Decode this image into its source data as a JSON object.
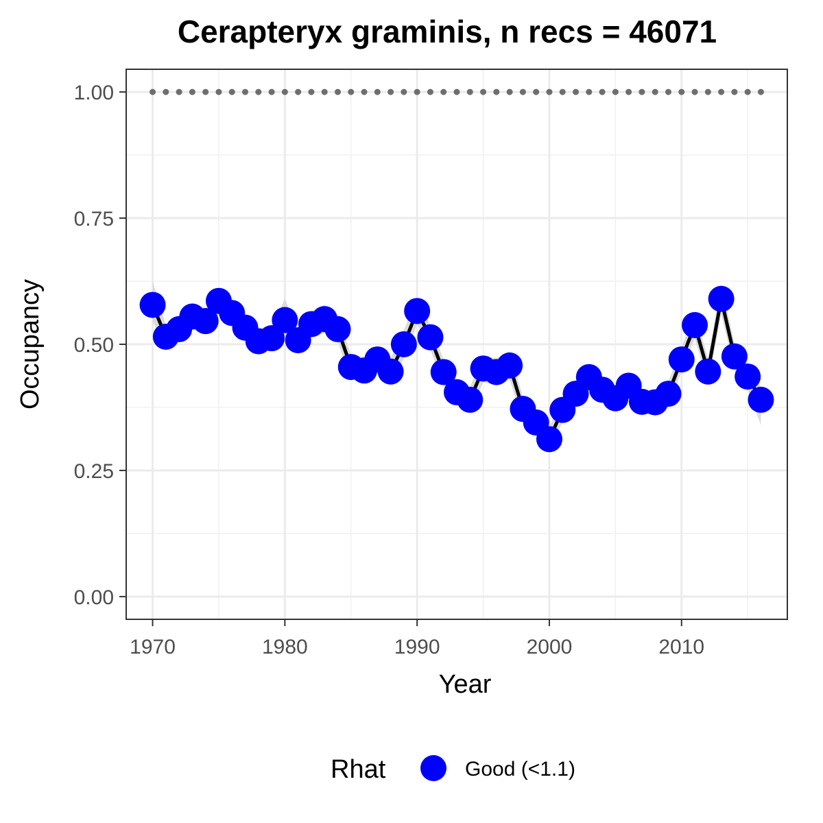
{
  "chart_data": {
    "type": "line",
    "title": "Cerapteryx graminis, n recs = 46071",
    "xlabel": "Year",
    "ylabel": "Occupancy",
    "xlim": [
      1968,
      2018
    ],
    "ylim": [
      -0.045,
      1.045
    ],
    "x_ticks": [
      1970,
      1980,
      1990,
      2000,
      2010
    ],
    "x_tick_labels": [
      "1970",
      "1980",
      "1990",
      "2000",
      "2010"
    ],
    "y_ticks": [
      0,
      0.25,
      0.5,
      0.75,
      1
    ],
    "y_tick_labels": [
      "0.00",
      "0.25",
      "0.50",
      "0.75",
      "1.00"
    ],
    "grid": true,
    "legend_position": "bottom",
    "legend": {
      "title": "Rhat",
      "entries": [
        {
          "label": "Good (<1.1)",
          "color": "#0000ff"
        }
      ]
    },
    "x": [
      1970,
      1971,
      1972,
      1973,
      1974,
      1975,
      1976,
      1977,
      1978,
      1979,
      1980,
      1981,
      1982,
      1983,
      1984,
      1985,
      1986,
      1987,
      1988,
      1989,
      1990,
      1991,
      1992,
      1993,
      1994,
      1995,
      1996,
      1997,
      1998,
      1999,
      2000,
      2001,
      2002,
      2003,
      2004,
      2005,
      2006,
      2007,
      2008,
      2009,
      2010,
      2011,
      2012,
      2013,
      2014,
      2015,
      2016
    ],
    "series": [
      {
        "values": [
          0.578,
          0.515,
          0.53,
          0.555,
          0.546,
          0.586,
          0.562,
          0.533,
          0.506,
          0.512,
          0.548,
          0.508,
          0.54,
          0.55,
          0.53,
          0.455,
          0.448,
          0.47,
          0.446,
          0.5,
          0.566,
          0.514,
          0.445,
          0.405,
          0.39,
          0.452,
          0.445,
          0.458,
          0.372,
          0.345,
          0.312,
          0.37,
          0.402,
          0.435,
          0.41,
          0.393,
          0.418,
          0.386,
          0.385,
          0.402,
          0.47,
          0.538,
          0.446,
          0.59,
          0.476,
          0.436,
          0.39
        ],
        "lower": [
          0.545,
          0.492,
          0.505,
          0.53,
          0.52,
          0.56,
          0.54,
          0.51,
          0.482,
          0.49,
          0.52,
          0.486,
          0.515,
          0.522,
          0.505,
          0.43,
          0.422,
          0.445,
          0.42,
          0.472,
          0.54,
          0.49,
          0.42,
          0.38,
          0.364,
          0.425,
          0.418,
          0.43,
          0.348,
          0.32,
          0.288,
          0.346,
          0.378,
          0.41,
          0.386,
          0.368,
          0.394,
          0.362,
          0.36,
          0.378,
          0.446,
          0.512,
          0.42,
          0.56,
          0.45,
          0.41,
          0.34
        ],
        "upper": [
          0.625,
          0.538,
          0.555,
          0.58,
          0.572,
          0.612,
          0.584,
          0.556,
          0.53,
          0.534,
          0.59,
          0.53,
          0.566,
          0.578,
          0.555,
          0.48,
          0.474,
          0.496,
          0.472,
          0.528,
          0.594,
          0.538,
          0.47,
          0.43,
          0.415,
          0.478,
          0.472,
          0.486,
          0.396,
          0.37,
          0.336,
          0.394,
          0.426,
          0.46,
          0.434,
          0.418,
          0.442,
          0.41,
          0.41,
          0.426,
          0.494,
          0.564,
          0.472,
          0.62,
          0.502,
          0.462,
          0.415
        ],
        "color": "#0000ff",
        "line_color": "#000000",
        "ribbon_color": "#d9d9d9"
      },
      {
        "values": [
          1,
          1,
          1,
          1,
          1,
          1,
          1,
          1,
          1,
          1,
          1,
          1,
          1,
          1,
          1,
          1,
          1,
          1,
          1,
          1,
          1,
          1,
          1,
          1,
          1,
          1,
          1,
          1,
          1,
          1,
          1,
          1,
          1,
          1,
          1,
          1,
          1,
          1,
          1,
          1,
          1,
          1,
          1,
          1,
          1,
          1,
          1
        ],
        "style": "dotted",
        "color": "#6e6e6e"
      }
    ]
  }
}
